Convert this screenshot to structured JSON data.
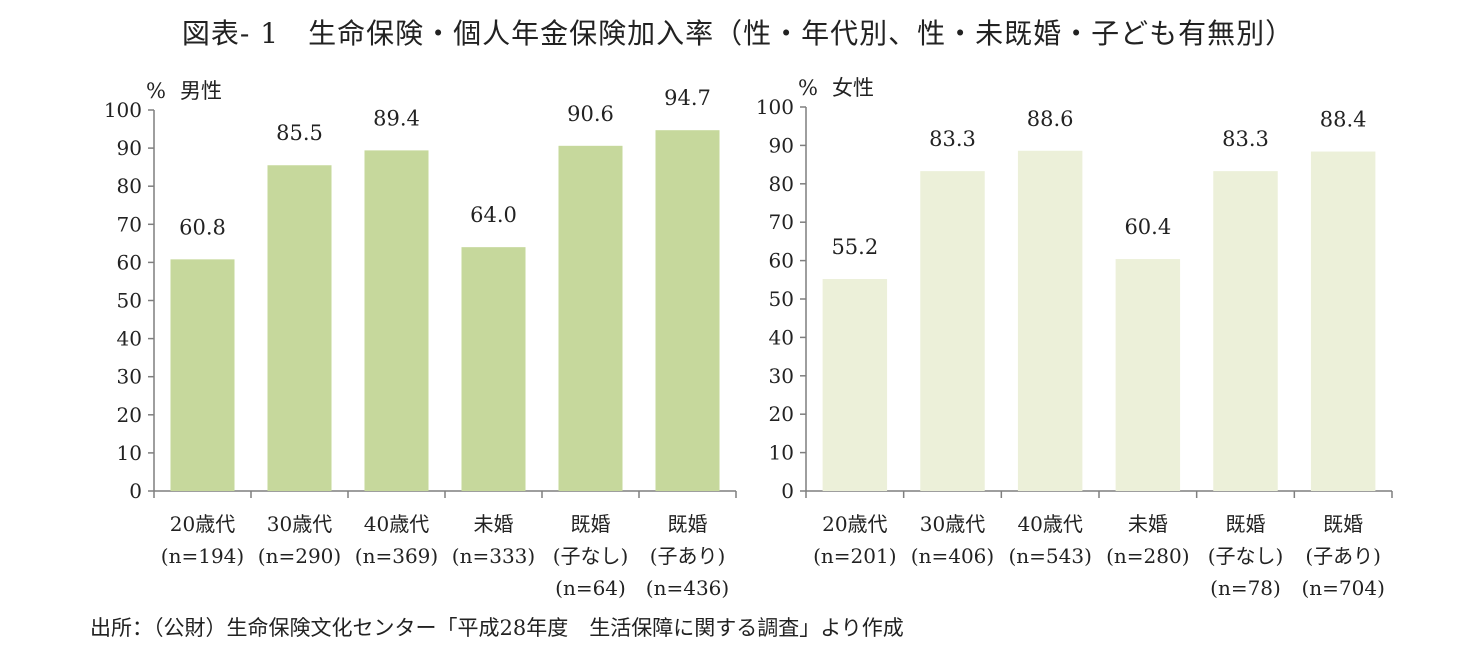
{
  "title": "図表- 1　生命保険・個人年金保険加入率（性・年代別、性・未既婚・子ども有無別）",
  "source": "出所：（公財）生命保険文化センター「平成28年度　生活保障に関する調査」より作成",
  "colors": {
    "male": "#c6d89c",
    "female": "#ecf0d9",
    "axis": "#7f7f7f"
  },
  "chart_data": [
    {
      "type": "bar",
      "unit_label": "%",
      "panel_label": "男性",
      "ylim": [
        0,
        100
      ],
      "yticks": [
        "0",
        "10",
        "20",
        "30",
        "40",
        "50",
        "60",
        "70",
        "80",
        "90",
        "100"
      ],
      "categories": [
        [
          "20歳代",
          "(n=194)"
        ],
        [
          "30歳代",
          "(n=290)"
        ],
        [
          "40歳代",
          "(n=369)"
        ],
        [
          "未婚",
          "(n=333)"
        ],
        [
          "既婚",
          "(子なし)",
          "(n=64)"
        ],
        [
          "既婚",
          "(子あり)",
          "(n=436)"
        ]
      ],
      "values": [
        60.8,
        85.5,
        89.4,
        64.0,
        90.6,
        94.7
      ],
      "value_labels": [
        "60.8",
        "85.5",
        "89.4",
        "64.0",
        "90.6",
        "94.7"
      ]
    },
    {
      "type": "bar",
      "unit_label": "%",
      "panel_label": "女性",
      "ylim": [
        0,
        100
      ],
      "yticks": [
        "0",
        "10",
        "20",
        "30",
        "40",
        "50",
        "60",
        "70",
        "80",
        "90",
        "100"
      ],
      "categories": [
        [
          "20歳代",
          "(n=201)"
        ],
        [
          "30歳代",
          "(n=406)"
        ],
        [
          "40歳代",
          "(n=543)"
        ],
        [
          "未婚",
          "(n=280)"
        ],
        [
          "既婚",
          "(子なし)",
          "(n=78)"
        ],
        [
          "既婚",
          "(子あり)",
          "(n=704)"
        ]
      ],
      "values": [
        55.2,
        83.3,
        88.6,
        60.4,
        83.3,
        88.4
      ],
      "value_labels": [
        "55.2",
        "83.3",
        "88.6",
        "60.4",
        "83.3",
        "88.4"
      ]
    }
  ]
}
